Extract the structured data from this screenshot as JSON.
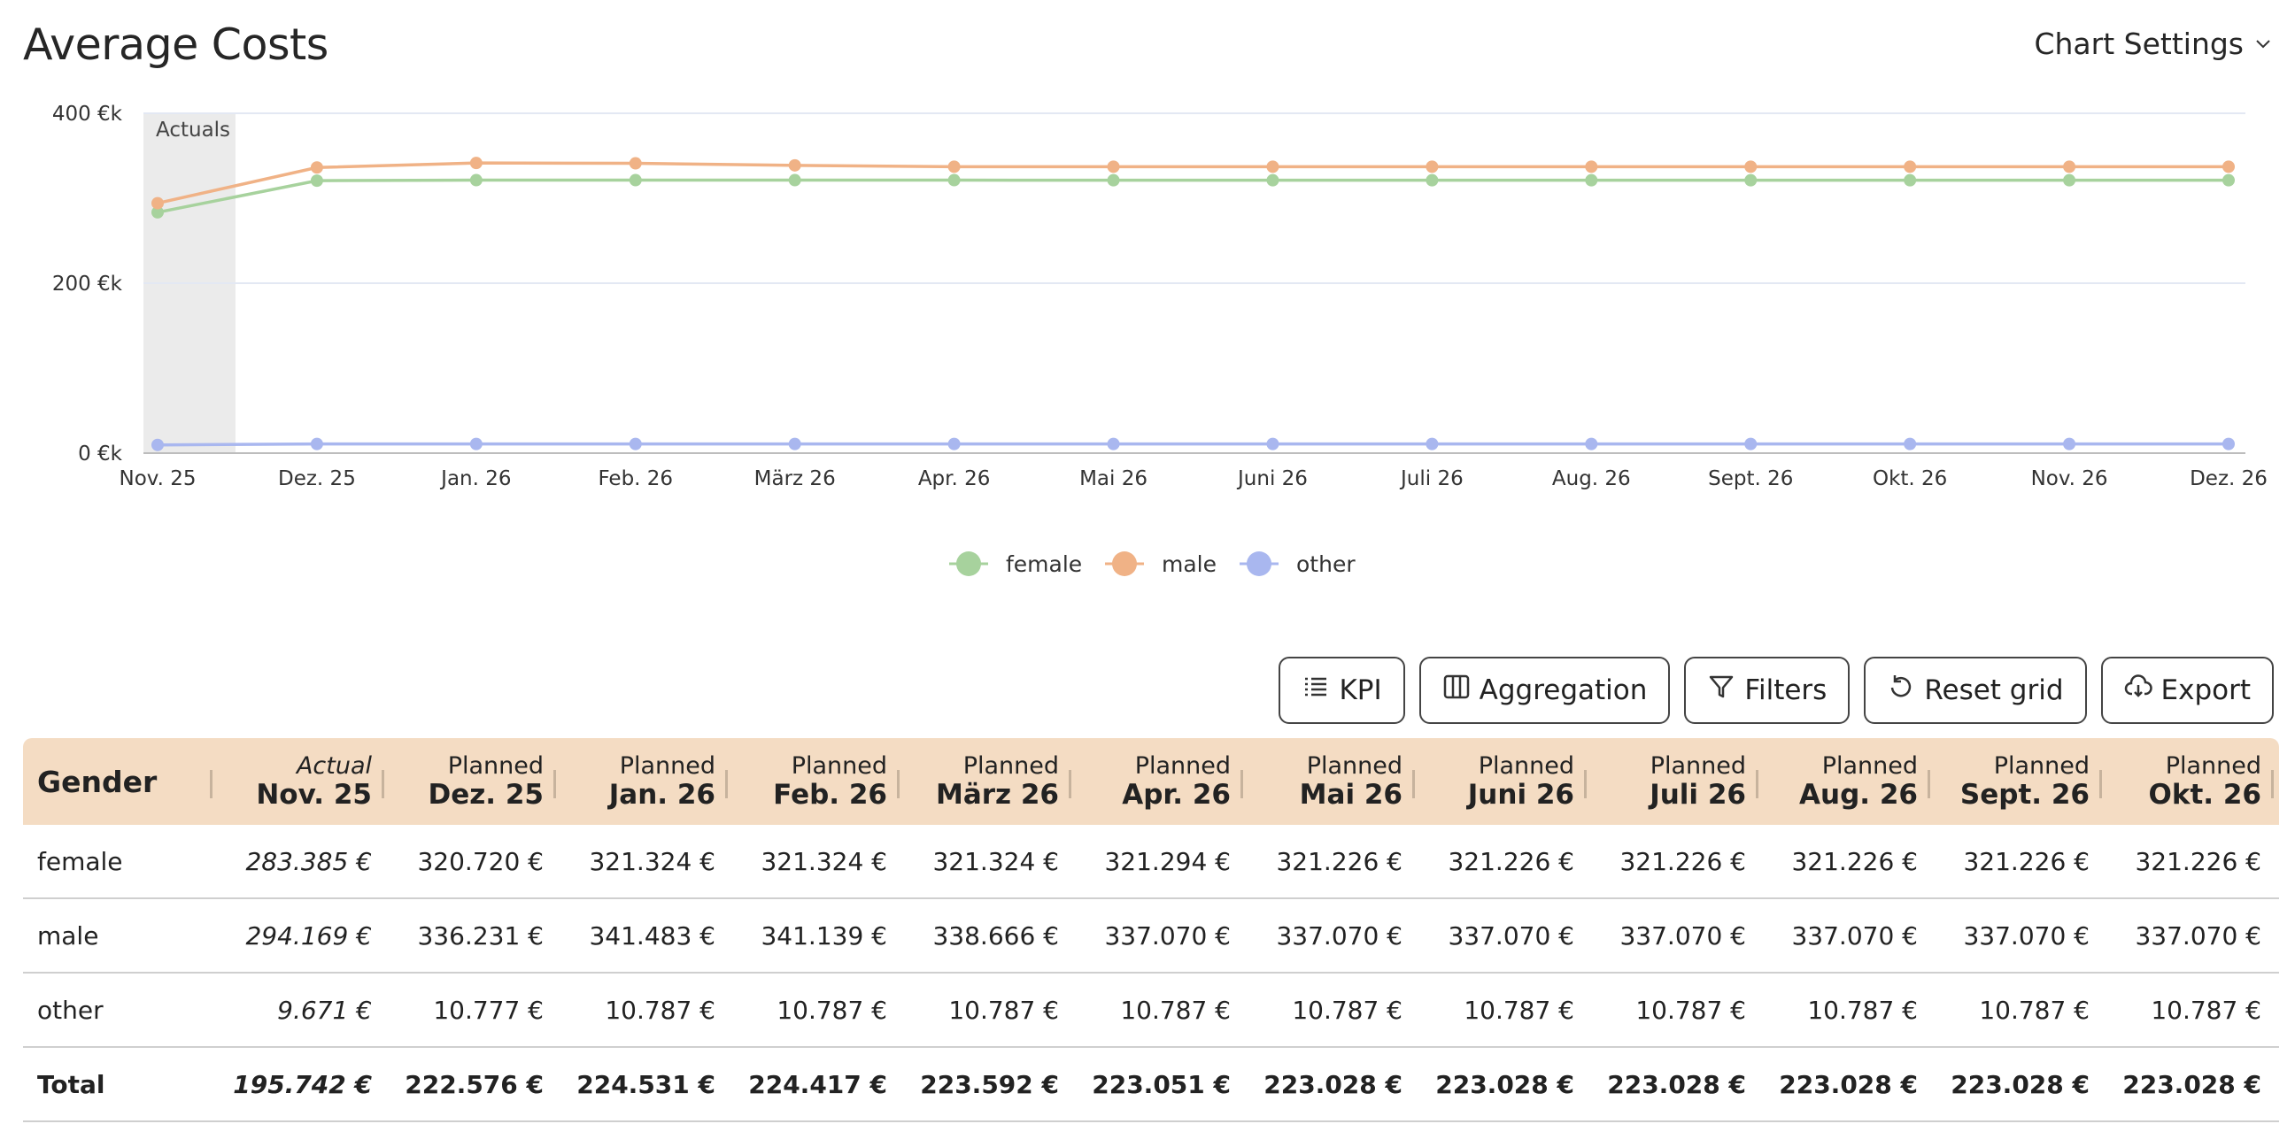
{
  "page": {
    "title": "Average Costs"
  },
  "header": {
    "chart_settings_label": "Chart Settings",
    "chart_settings_icon": "chevron-down-icon"
  },
  "colors": {
    "female": "#a7d29d",
    "male": "#f0b286",
    "other": "#a9b7ef",
    "header_bg": "#f4dcc3",
    "actuals_band": "#ebebeb"
  },
  "chart_data": {
    "type": "line",
    "title": "",
    "actuals_label": "Actuals",
    "x": [
      "Nov. 25",
      "Dez. 25",
      "Jan. 26",
      "Feb. 26",
      "März 26",
      "Apr. 26",
      "Mai 26",
      "Juni 26",
      "Juli 26",
      "Aug. 26",
      "Sept. 26",
      "Okt. 26",
      "Nov. 26",
      "Dez. 26"
    ],
    "y_ticks": [
      {
        "value": 0,
        "label": "0 €k"
      },
      {
        "value": 200,
        "label": "200 €k"
      },
      {
        "value": 400,
        "label": "400 €k"
      }
    ],
    "ylim": [
      0,
      400
    ],
    "series": [
      {
        "name": "female",
        "values": [
          283.4,
          320.7,
          321.3,
          321.3,
          321.3,
          321.3,
          321.2,
          321.2,
          321.2,
          321.2,
          321.2,
          321.2,
          321.2,
          321.2
        ]
      },
      {
        "name": "male",
        "values": [
          294.2,
          336.2,
          341.5,
          341.1,
          338.7,
          337.1,
          337.1,
          337.1,
          337.1,
          337.1,
          337.1,
          337.1,
          337.1,
          337.1
        ]
      },
      {
        "name": "other",
        "values": [
          9.7,
          10.8,
          10.8,
          10.8,
          10.8,
          10.8,
          10.8,
          10.8,
          10.8,
          10.8,
          10.8,
          10.8,
          10.8,
          10.8
        ]
      }
    ],
    "legend": [
      "female",
      "male",
      "other"
    ],
    "legend_position": "bottom-center",
    "grid": true
  },
  "toolbar": {
    "buttons": [
      {
        "label": "KPI",
        "icon": "list-icon"
      },
      {
        "label": "Aggregation",
        "icon": "columns-icon"
      },
      {
        "label": "Filters",
        "icon": "filter-icon"
      },
      {
        "label": "Reset grid",
        "icon": "reset-icon"
      },
      {
        "label": "Export",
        "icon": "cloud-download-icon"
      }
    ]
  },
  "table": {
    "first_header": "Gender",
    "columns": [
      {
        "top": "Actual",
        "bottom": "Nov. 25"
      },
      {
        "top": "Planned",
        "bottom": "Dez. 25"
      },
      {
        "top": "Planned",
        "bottom": "Jan. 26"
      },
      {
        "top": "Planned",
        "bottom": "Feb. 26"
      },
      {
        "top": "Planned",
        "bottom": "März 26"
      },
      {
        "top": "Planned",
        "bottom": "Apr. 26"
      },
      {
        "top": "Planned",
        "bottom": "Mai 26"
      },
      {
        "top": "Planned",
        "bottom": "Juni 26"
      },
      {
        "top": "Planned",
        "bottom": "Juli 26"
      },
      {
        "top": "Planned",
        "bottom": "Aug. 26"
      },
      {
        "top": "Planned",
        "bottom": "Sept. 26"
      },
      {
        "top": "Planned",
        "bottom": "Okt. 26"
      }
    ],
    "rows": [
      {
        "label": "female",
        "values": [
          "283.385 €",
          "320.720 €",
          "321.324 €",
          "321.324 €",
          "321.324 €",
          "321.294 €",
          "321.226 €",
          "321.226 €",
          "321.226 €",
          "321.226 €",
          "321.226 €",
          "321.226 €"
        ]
      },
      {
        "label": "male",
        "values": [
          "294.169 €",
          "336.231 €",
          "341.483 €",
          "341.139 €",
          "338.666 €",
          "337.070 €",
          "337.070 €",
          "337.070 €",
          "337.070 €",
          "337.070 €",
          "337.070 €",
          "337.070 €"
        ]
      },
      {
        "label": "other",
        "values": [
          "9.671 €",
          "10.777 €",
          "10.787 €",
          "10.787 €",
          "10.787 €",
          "10.787 €",
          "10.787 €",
          "10.787 €",
          "10.787 €",
          "10.787 €",
          "10.787 €",
          "10.787 €"
        ]
      },
      {
        "label": "Total",
        "values": [
          "195.742 €",
          "222.576 €",
          "224.531 €",
          "224.417 €",
          "223.592 €",
          "223.051 €",
          "223.028 €",
          "223.028 €",
          "223.028 €",
          "223.028 €",
          "223.028 €",
          "223.028 €"
        ]
      }
    ]
  }
}
